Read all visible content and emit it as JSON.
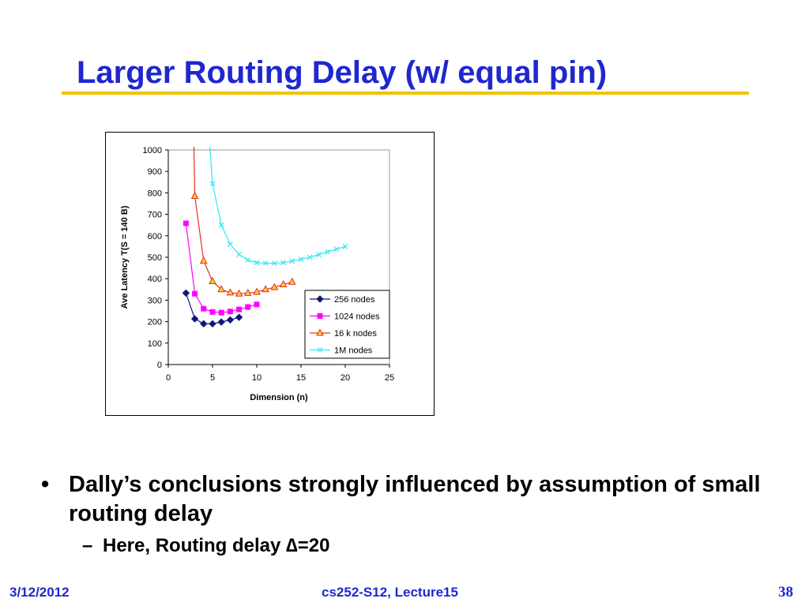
{
  "slide": {
    "title": "Larger Routing Delay (w/ equal pin)",
    "bullet_marker": "•",
    "bullet_text": "Dally’s conclusions strongly influenced by assumption of small routing delay",
    "sub_bullet_marker": "–",
    "sub_bullet_text": "Here, Routing delay ∆=20"
  },
  "footer": {
    "date": "3/12/2012",
    "course": "cs252-S12, Lecture15",
    "page": "38"
  },
  "colors": {
    "title": "#1f27cf",
    "rule": "#f2c200",
    "s256": "#0d1a7a",
    "s1024": "#ff00ff",
    "s16k": "#e0301e",
    "s16k_marker_fill": "#ffcc33",
    "s1m": "#33e6f2"
  },
  "chart_data": {
    "type": "line",
    "xlabel": "Dimension (n)",
    "ylabel": "Ave Latency T(S = 140 B)",
    "xlim": [
      0,
      25
    ],
    "ylim": [
      0,
      1000
    ],
    "xticks": [
      "0",
      "5",
      "10",
      "15",
      "20",
      "25"
    ],
    "yticks": [
      "0",
      "100",
      "200",
      "300",
      "400",
      "500",
      "600",
      "700",
      "800",
      "900",
      "1000"
    ],
    "legend_position": "bottom-right inside plot",
    "series": [
      {
        "name": "256 nodes",
        "marker": "diamond",
        "x": [
          2,
          3,
          4,
          5,
          6,
          7,
          8
        ],
        "y": [
          333,
          213,
          190,
          190,
          198,
          208,
          220
        ]
      },
      {
        "name": "1024 nodes",
        "marker": "square",
        "x": [
          2,
          3,
          4,
          5,
          6,
          7,
          8,
          9,
          10
        ],
        "y": [
          658,
          330,
          260,
          245,
          242,
          247,
          257,
          268,
          280
        ]
      },
      {
        "name": "16 k nodes",
        "marker": "triangle",
        "x": [
          3,
          4,
          5,
          6,
          7,
          8,
          9,
          10,
          11,
          12,
          13,
          14
        ],
        "y": [
          785,
          483,
          388,
          350,
          335,
          330,
          333,
          338,
          350,
          360,
          373,
          385
        ]
      },
      {
        "name": "1M nodes",
        "marker": "x",
        "x": [
          5,
          6,
          7,
          8,
          9,
          10,
          11,
          12,
          13,
          14,
          15,
          16,
          17,
          18,
          19,
          20
        ],
        "y": [
          843,
          650,
          560,
          513,
          487,
          475,
          472,
          472,
          475,
          482,
          490,
          500,
          512,
          525,
          538,
          550
        ]
      }
    ],
    "steep_extensions": {
      "1024 nodes": null,
      "16 k nodes": [
        2.9,
        1015
      ],
      "1M nodes": [
        4.7,
        1015
      ]
    }
  }
}
